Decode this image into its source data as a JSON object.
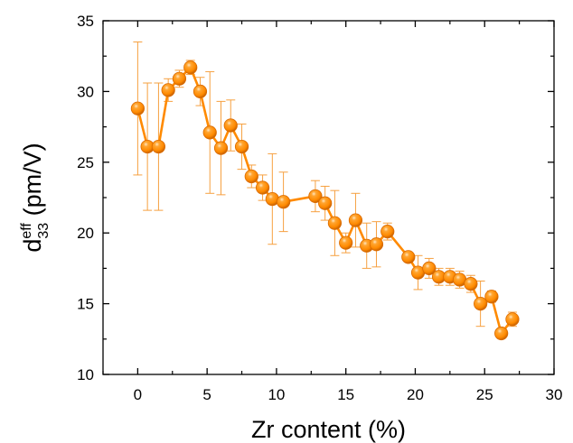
{
  "chart_data": {
    "type": "line",
    "marker": "sphere",
    "colors": {
      "series": "#ff8a00",
      "series_dark": "#d96a00",
      "error_bar": "#f6a040",
      "axis": "#000000"
    },
    "xlabel": "Zr content (%)",
    "ylabel": {
      "base": "d",
      "superscript": "eff",
      "subscript": "33",
      "unit": " (pm/V)"
    },
    "xlim": [
      -2.5,
      30
    ],
    "ylim": [
      10,
      35
    ],
    "x_ticks": [
      0,
      5,
      10,
      15,
      20,
      25,
      30
    ],
    "x_tick_labels": [
      "0",
      "5",
      "10",
      "15",
      "20",
      "25",
      "30"
    ],
    "y_ticks": [
      10,
      15,
      20,
      25,
      30,
      35
    ],
    "y_tick_labels": [
      "10",
      "15",
      "20",
      "25",
      "30",
      "35"
    ],
    "grid": false,
    "series": [
      {
        "x": [
          0.0,
          0.7,
          1.5,
          2.2,
          3.0,
          3.8,
          4.5,
          5.2,
          6.0,
          6.7,
          7.5,
          8.2,
          9.0,
          9.7,
          10.5,
          12.8,
          13.5,
          14.2,
          15.0,
          15.7,
          16.5,
          17.2,
          18.0,
          19.5,
          20.2,
          21.0,
          21.7,
          22.5,
          23.2,
          24.0,
          24.7,
          25.5,
          26.2,
          27.0
        ],
        "y": [
          28.8,
          26.1,
          26.1,
          30.1,
          30.9,
          31.7,
          30.0,
          27.1,
          26.0,
          27.6,
          26.1,
          24.0,
          23.2,
          22.4,
          22.2,
          22.6,
          22.1,
          20.7,
          19.3,
          20.9,
          19.1,
          19.2,
          20.1,
          18.3,
          17.2,
          17.5,
          16.9,
          16.9,
          16.7,
          16.4,
          15.0,
          15.5,
          12.9,
          13.9
        ],
        "err": [
          4.7,
          4.5,
          4.5,
          0.8,
          0.6,
          0.5,
          1.0,
          4.3,
          3.3,
          1.8,
          1.6,
          0.8,
          0.9,
          3.2,
          2.1,
          1.1,
          1.2,
          2.3,
          0.7,
          1.9,
          1.6,
          1.6,
          0.6,
          0.3,
          1.2,
          0.7,
          0.6,
          0.6,
          0.6,
          0.6,
          1.6,
          0.4,
          0.3,
          0.5
        ]
      }
    ]
  }
}
